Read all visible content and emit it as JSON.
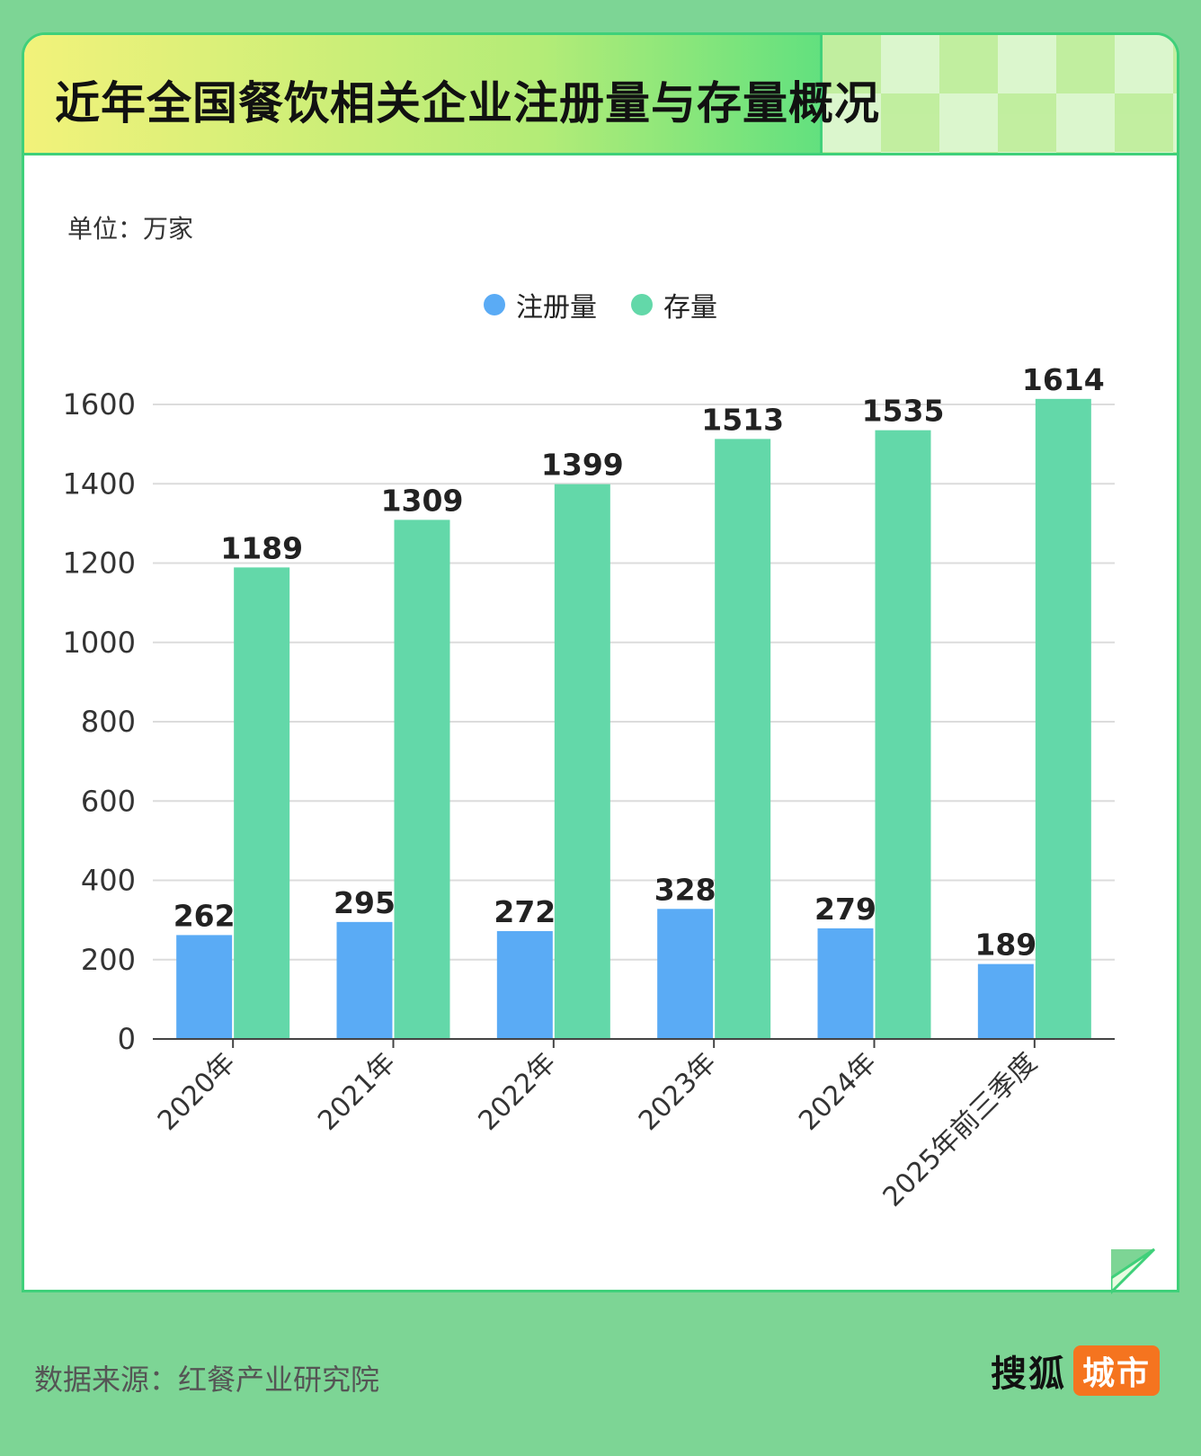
{
  "header": {
    "title": "近年全国餐饮相关企业注册量与存量概况"
  },
  "unit_label": "单位：万家",
  "legend": [
    {
      "name": "注册量",
      "color": "#5aabf5"
    },
    {
      "name": "存量",
      "color": "#63d8a9"
    }
  ],
  "chart_data": {
    "type": "bar",
    "categories": [
      "2020年",
      "2021年",
      "2022年",
      "2023年",
      "2024年",
      "2025年前三季度"
    ],
    "series": [
      {
        "name": "注册量",
        "color": "#5aabf5",
        "values": [
          262,
          295,
          272,
          328,
          279,
          189
        ]
      },
      {
        "name": "存量",
        "color": "#63d8a9",
        "values": [
          1189,
          1309,
          1399,
          1513,
          1535,
          1614
        ]
      }
    ],
    "ylim": [
      0,
      1600
    ],
    "yticks": [
      0,
      200,
      400,
      600,
      800,
      1000,
      1200,
      1400,
      1600
    ],
    "grid": true,
    "legend_position": "top-center"
  },
  "footer": {
    "source": "数据来源：红餐产业研究院",
    "brand_main": "搜狐",
    "brand_tag": "城市"
  }
}
